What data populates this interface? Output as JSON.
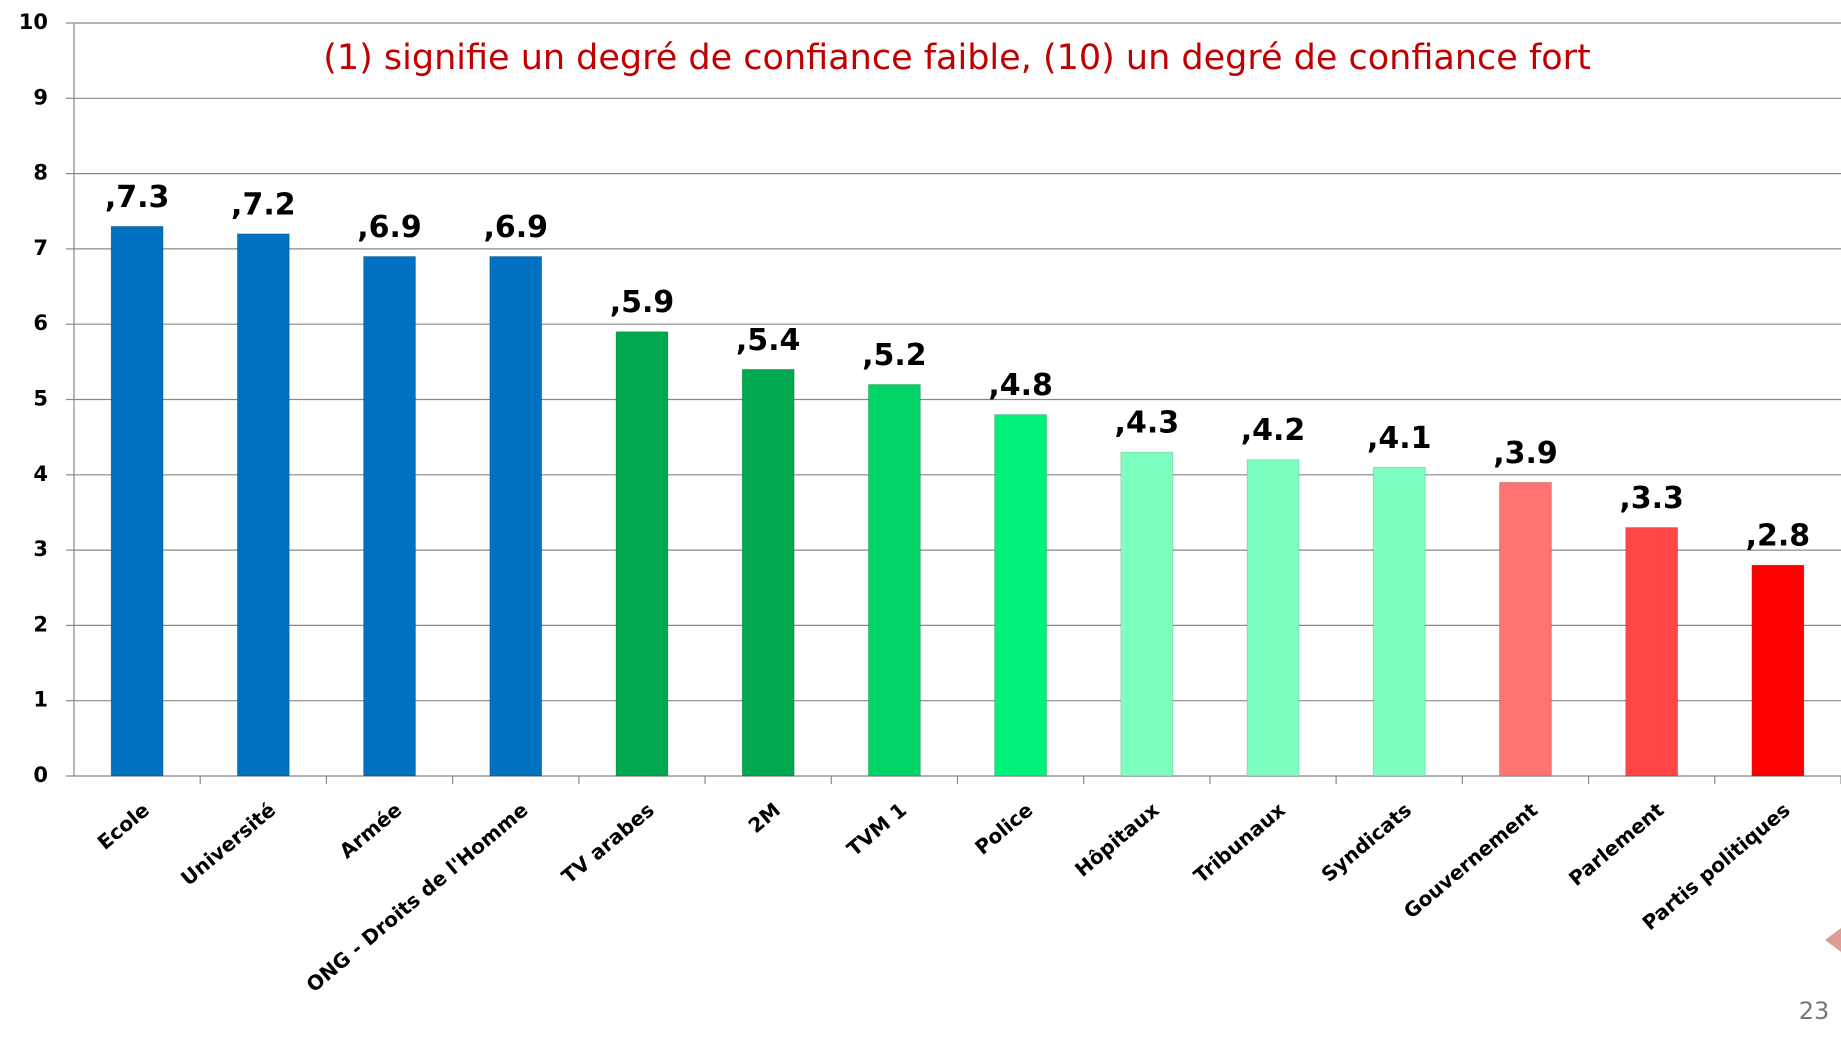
{
  "chart_data": {
    "type": "bar",
    "title": "(1) signifie un degré de confiance faible, (10) un degré de confiance fort",
    "categories": [
      "Ecole",
      "Université",
      "Armée",
      "ONG - Droits de l'Homme",
      "TV arabes",
      "2M",
      "TVM 1",
      "Police",
      "Hôpitaux",
      "Tribunaux",
      "Syndicats",
      "Gouvernement",
      "Parlement",
      "Partis politiques"
    ],
    "values": [
      7.3,
      7.2,
      6.9,
      6.9,
      5.9,
      5.4,
      5.2,
      4.8,
      4.3,
      4.2,
      4.1,
      3.9,
      3.3,
      2.8
    ],
    "value_labels": [
      ",7.3",
      ",7.2",
      ",6.9",
      ",6.9",
      ",5.9",
      ",5.4",
      ",5.2",
      ",4.8",
      ",4.3",
      ",4.2",
      ",4.1",
      ",3.9",
      ",3.3",
      ",2.8"
    ],
    "colors": [
      "#0070c0",
      "#0070c0",
      "#0070c0",
      "#0070c0",
      "#00a94f",
      "#00a94f",
      "#00d466",
      "#00f27a",
      "#7dffbf",
      "#7dffbf",
      "#7dffbf",
      "#ff7373",
      "#ff4545",
      "#ff0000"
    ],
    "ylim": [
      0,
      10
    ],
    "yticks": [
      0,
      1,
      2,
      3,
      4,
      5,
      6,
      7,
      8,
      9,
      10
    ],
    "grid": true
  },
  "page_number": "23"
}
